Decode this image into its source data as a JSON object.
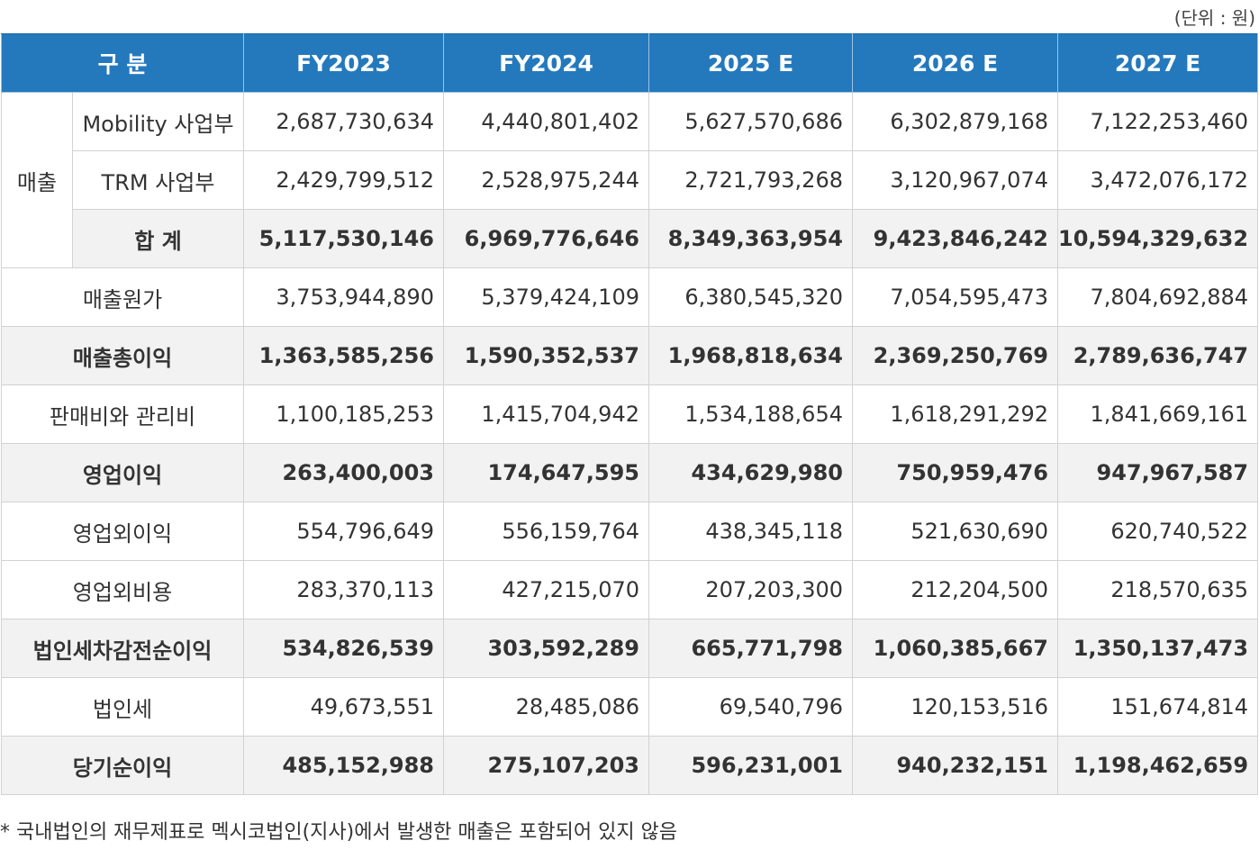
{
  "unit_label": "(단위 : 원)",
  "headers": [
    "구 분",
    "FY2023",
    "FY2024",
    "2025 E",
    "2026 E",
    "2027 E"
  ],
  "sales_group_label": "매출",
  "sales_rows": [
    {
      "label": "Mobility 사업부",
      "values": [
        "2,687,730,634",
        "4,440,801,402",
        "5,627,570,686",
        "6,302,879,168",
        "7,122,253,460"
      ]
    },
    {
      "label": "TRM 사업부",
      "values": [
        "2,429,799,512",
        "2,528,975,244",
        "2,721,793,268",
        "3,120,967,074",
        "3,472,076,172"
      ]
    },
    {
      "label": "합 계",
      "values": [
        "5,117,530,146",
        "6,969,776,646",
        "8,349,363,954",
        "9,423,846,242",
        "10,594,329,632"
      ]
    }
  ],
  "rows": [
    {
      "label": "매출원가",
      "values": [
        "3,753,944,890",
        "5,379,424,109",
        "6,380,545,320",
        "7,054,595,473",
        "7,804,692,884"
      ]
    },
    {
      "label": "매출총이익",
      "values": [
        "1,363,585,256",
        "1,590,352,537",
        "1,968,818,634",
        "2,369,250,769",
        "2,789,636,747"
      ]
    },
    {
      "label": "판매비와 관리비",
      "values": [
        "1,100,185,253",
        "1,415,704,942",
        "1,534,188,654",
        "1,618,291,292",
        "1,841,669,161"
      ]
    },
    {
      "label": "영업이익",
      "values": [
        "263,400,003",
        "174,647,595",
        "434,629,980",
        "750,959,476",
        "947,967,587"
      ]
    },
    {
      "label": "영업외이익",
      "values": [
        "554,796,649",
        "556,159,764",
        "438,345,118",
        "521,630,690",
        "620,740,522"
      ]
    },
    {
      "label": "영업외비용",
      "values": [
        "283,370,113",
        "427,215,070",
        "207,203,300",
        "212,204,500",
        "218,570,635"
      ]
    },
    {
      "label": "법인세차감전순이익",
      "values": [
        "534,826,539",
        "303,592,289",
        "665,771,798",
        "1,060,385,667",
        "1,350,137,473"
      ]
    },
    {
      "label": "법인세",
      "values": [
        "49,673,551",
        "28,485,086",
        "69,540,796",
        "120,153,516",
        "151,674,814"
      ]
    },
    {
      "label": "당기순이익",
      "values": [
        "485,152,988",
        "275,107,203",
        "596,231,001",
        "940,232,151",
        "1,198,462,659"
      ]
    }
  ],
  "footnote": "* 국내법인의 재무제표로 멕시코법인(지사)에서 발생한 매출은 포함되어 있지 않음",
  "colors": {
    "header_bg": "#2479bd",
    "bold_row_bg": "#f2f2f2",
    "border": "#d2d2d2"
  }
}
